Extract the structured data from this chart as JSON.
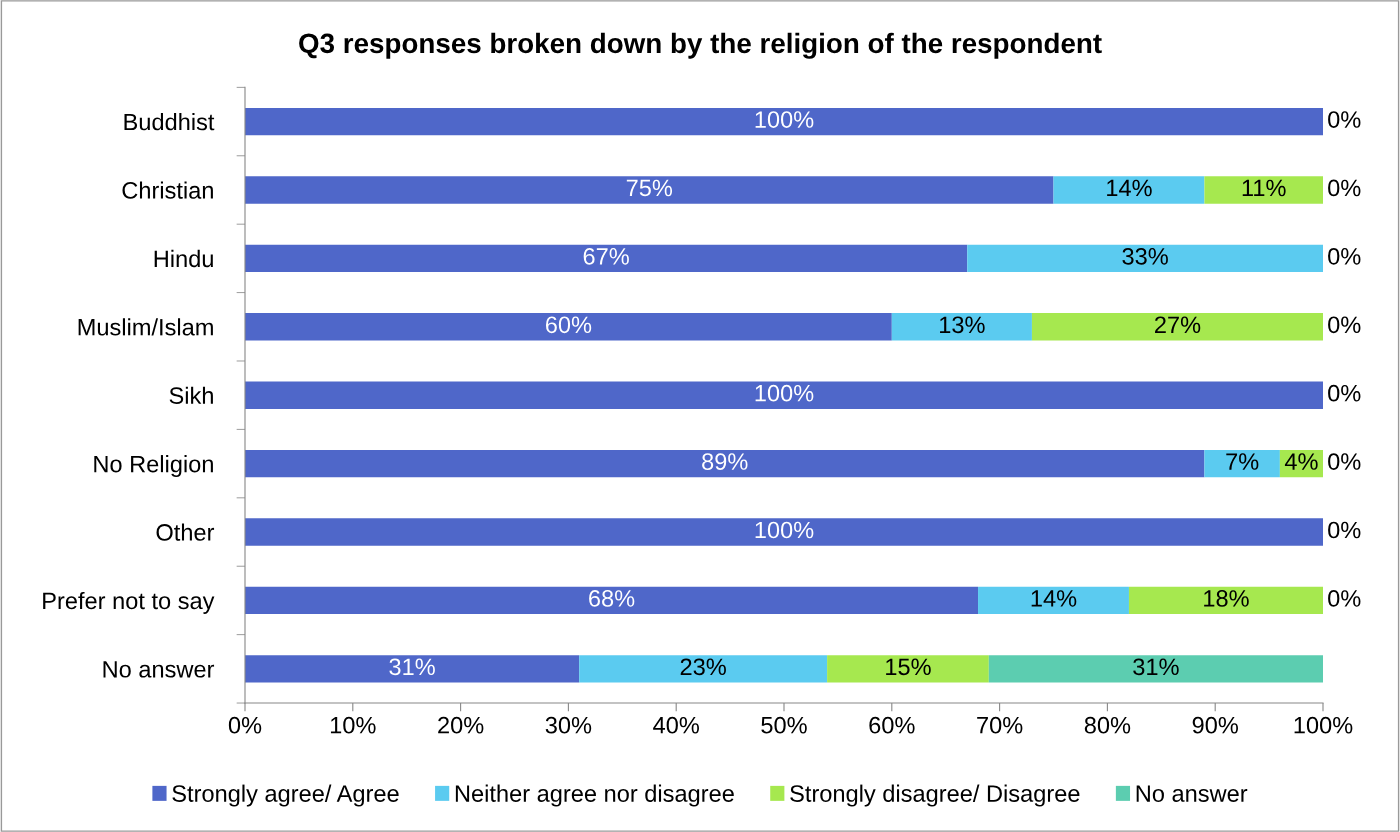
{
  "chart_data": {
    "type": "bar",
    "orientation": "horizontal",
    "stacked": true,
    "title": "Q3 responses broken down by the religion of the respondent",
    "categories": [
      "Buddhist",
      "Christian",
      "Hindu",
      "Muslim/Islam",
      "Sikh",
      "No Religion",
      "Other",
      "Prefer not to say",
      "No answer"
    ],
    "series": [
      {
        "name": "Strongly agree/ Agree",
        "color": "#4f67c9",
        "values": [
          100,
          75,
          67,
          60,
          100,
          89,
          100,
          68,
          31
        ],
        "value_labels": [
          "100%",
          "75%",
          "67%",
          "60%",
          "100%",
          "89%",
          "100%",
          "68%",
          "31%"
        ]
      },
      {
        "name": "Neither agree nor disagree",
        "color": "#5bcbf0",
        "values": [
          0,
          14,
          33,
          13,
          0,
          7,
          0,
          14,
          23
        ],
        "value_labels": [
          null,
          "14%",
          "33%",
          "13%",
          null,
          "7%",
          null,
          "14%",
          "23%"
        ]
      },
      {
        "name": "Strongly disagree/ Disagree",
        "color": "#a6e84f",
        "values": [
          0,
          11,
          0,
          27,
          0,
          4,
          0,
          18,
          15
        ],
        "value_labels": [
          null,
          "11%",
          null,
          "27%",
          null,
          "4%",
          null,
          "18%",
          "15%"
        ]
      },
      {
        "name": "No answer",
        "color": "#5ccdb0",
        "values": [
          0,
          0,
          0,
          0,
          0,
          0,
          0,
          0,
          31
        ],
        "value_labels": [
          "0%",
          "0%",
          "0%",
          "0%",
          "0%",
          "0%",
          "0%",
          "0%",
          "31%"
        ]
      }
    ],
    "xlim": [
      0,
      100
    ],
    "xticks": [
      {
        "value": 0,
        "label": "0%"
      },
      {
        "value": 10,
        "label": "10%"
      },
      {
        "value": 20,
        "label": "20%"
      },
      {
        "value": 30,
        "label": "30%"
      },
      {
        "value": 40,
        "label": "40%"
      },
      {
        "value": 50,
        "label": "50%"
      },
      {
        "value": 60,
        "label": "60%"
      },
      {
        "value": 70,
        "label": "70%"
      },
      {
        "value": 80,
        "label": "80%"
      },
      {
        "value": 90,
        "label": "90%"
      },
      {
        "value": 100,
        "label": "100%"
      }
    ],
    "grid": false,
    "legend": "bottom"
  }
}
